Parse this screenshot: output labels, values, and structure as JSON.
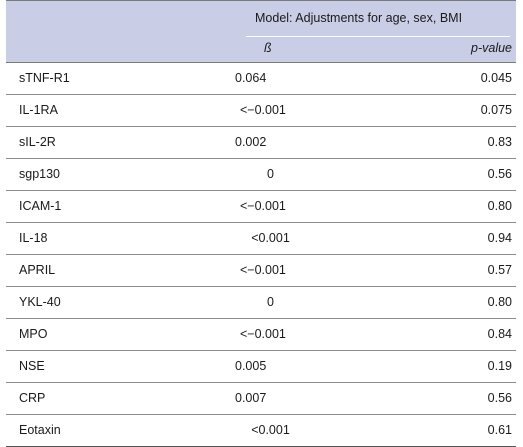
{
  "header": {
    "model_label": "Model: Adjustments for age, sex, BMI",
    "beta_label": "ß",
    "pvalue_label": "p-value"
  },
  "rows": [
    {
      "name": "sTNF-R1",
      "beta": "0.064",
      "p": "0.045",
      "align": "left"
    },
    {
      "name": "IL-1RA",
      "beta": "<−0.001",
      "p": "0.075",
      "align": "lt"
    },
    {
      "name": "sIL-2R",
      "beta": "0.002",
      "p": "0.83",
      "align": "left"
    },
    {
      "name": "sgp130",
      "beta": "0",
      "p": "0.56",
      "align": "center"
    },
    {
      "name": "ICAM-1",
      "beta": "<−0.001",
      "p": "0.80",
      "align": "lt"
    },
    {
      "name": "IL-18",
      "beta": "<0.001",
      "p": "0.94",
      "align": "center"
    },
    {
      "name": "APRIL",
      "beta": "<−0.001",
      "p": "0.57",
      "align": "lt"
    },
    {
      "name": "YKL-40",
      "beta": "0",
      "p": "0.80",
      "align": "center"
    },
    {
      "name": "MPO",
      "beta": "<−0.001",
      "p": "0.84",
      "align": "lt"
    },
    {
      "name": "NSE",
      "beta": "0.005",
      "p": "0.19",
      "align": "left"
    },
    {
      "name": "CRP",
      "beta": "0.007",
      "p": "0.56",
      "align": "left"
    },
    {
      "name": "Eotaxin",
      "beta": "<0.001",
      "p": "0.61",
      "align": "center"
    }
  ]
}
